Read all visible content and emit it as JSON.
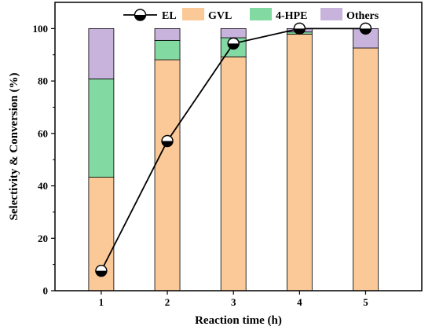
{
  "chart_data": {
    "type": "bar",
    "stacked": true,
    "categories": [
      "1",
      "2",
      "3",
      "4",
      "5"
    ],
    "xlabel": "Reaction time (h)",
    "ylabel": "Selectivity & Conversion (%)",
    "ylim": [
      0,
      110
    ],
    "yticks": [
      0,
      20,
      40,
      60,
      80,
      100
    ],
    "grid": false,
    "legend_position": "top",
    "series": [
      {
        "name": "GVL",
        "color": "#FBC898",
        "values": [
          43.3,
          88.1,
          89.2,
          97.9,
          92.6
        ]
      },
      {
        "name": "4-HPE",
        "color": "#83D9A2",
        "values": [
          37.5,
          7.4,
          7.3,
          0.8,
          0.0
        ]
      },
      {
        "name": "Others",
        "color": "#C8B3DC",
        "values": [
          19.2,
          4.5,
          3.5,
          1.3,
          7.4
        ]
      }
    ],
    "line_series": {
      "name": "EL",
      "color": "#000000",
      "values": [
        7.6,
        57.1,
        94.3,
        100.0,
        100.0
      ]
    }
  }
}
